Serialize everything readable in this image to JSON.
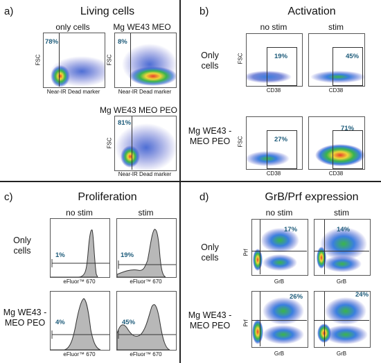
{
  "panels": {
    "a": {
      "letter": "a)",
      "title": "Living cells",
      "plots": [
        {
          "title": "only cells",
          "pct": "78%",
          "ylabel": "FSC",
          "xlabel": "Near-IR Dead marker"
        },
        {
          "title": "Mg WE43 MEO",
          "pct": "8%",
          "ylabel": "FSC",
          "xlabel": "Near-IR Dead marker"
        },
        {
          "title": "Mg WE43 MEO PEO",
          "pct": "81%",
          "ylabel": "FSC",
          "xlabel": "Near-IR Dead marker"
        }
      ]
    },
    "b": {
      "letter": "b)",
      "title": "Activation",
      "col1": "no stim",
      "col2": "stim",
      "row1": "Only\ncells",
      "row2": "Mg WE43 -\nMEO PEO",
      "plots": [
        {
          "pct": "19%",
          "ylabel": "FSC",
          "xlabel": "CD38"
        },
        {
          "pct": "45%",
          "ylabel": "",
          "xlabel": "CD38"
        },
        {
          "pct": "27%",
          "ylabel": "FSC",
          "xlabel": "CD38"
        },
        {
          "pct": "71%",
          "ylabel": "",
          "xlabel": "CD38"
        }
      ]
    },
    "c": {
      "letter": "c)",
      "title": "Proliferation",
      "col1": "no stim",
      "col2": "stim",
      "row1": "Only\ncells",
      "row2": "Mg WE43 -\nMEO PEO",
      "plots": [
        {
          "pct": "1%",
          "xlabel": "eFluor™ 670"
        },
        {
          "pct": "19%",
          "xlabel": "eFluor™ 670"
        },
        {
          "pct": "4%",
          "xlabel": "eFluor™ 670"
        },
        {
          "pct": "45%",
          "xlabel": "eFluor™ 670"
        }
      ]
    },
    "d": {
      "letter": "d)",
      "title": "GrB/Prf expression",
      "col1": "no stim",
      "col2": "stim",
      "row1": "Only\ncells",
      "row2": "Mg WE43 -\nMEO PEO",
      "plots": [
        {
          "pct": "17%",
          "ylabel": "Prf",
          "xlabel": "GrB"
        },
        {
          "pct": "14%",
          "ylabel": "",
          "xlabel": "GrB"
        },
        {
          "pct": "26%",
          "ylabel": "Prf",
          "xlabel": "GrB"
        },
        {
          "pct": "24%",
          "ylabel": "",
          "xlabel": "GrB"
        }
      ]
    }
  }
}
